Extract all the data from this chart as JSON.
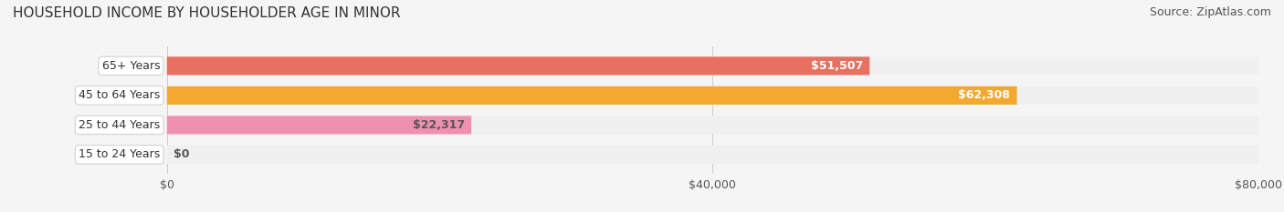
{
  "title": "HOUSEHOLD INCOME BY HOUSEHOLDER AGE IN MINOR",
  "source": "Source: ZipAtlas.com",
  "categories": [
    "15 to 24 Years",
    "25 to 44 Years",
    "45 to 64 Years",
    "65+ Years"
  ],
  "values": [
    0,
    22317,
    62308,
    51507
  ],
  "bar_colors": [
    "#a8a8d8",
    "#f090b0",
    "#f5a830",
    "#e87060"
  ],
  "bar_bg_color": "#f0f0f0",
  "label_colors": [
    "#555555",
    "#555555",
    "#ffffff",
    "#ffffff"
  ],
  "value_labels": [
    "$0",
    "$22,317",
    "$62,308",
    "$51,507"
  ],
  "xlim": [
    0,
    80000
  ],
  "xticks": [
    0,
    40000,
    80000
  ],
  "xticklabels": [
    "$0",
    "$40,000",
    "$80,000"
  ],
  "background_color": "#f5f5f5",
  "title_fontsize": 11,
  "source_fontsize": 9,
  "bar_label_fontsize": 9,
  "tick_fontsize": 9,
  "bar_height": 0.62
}
